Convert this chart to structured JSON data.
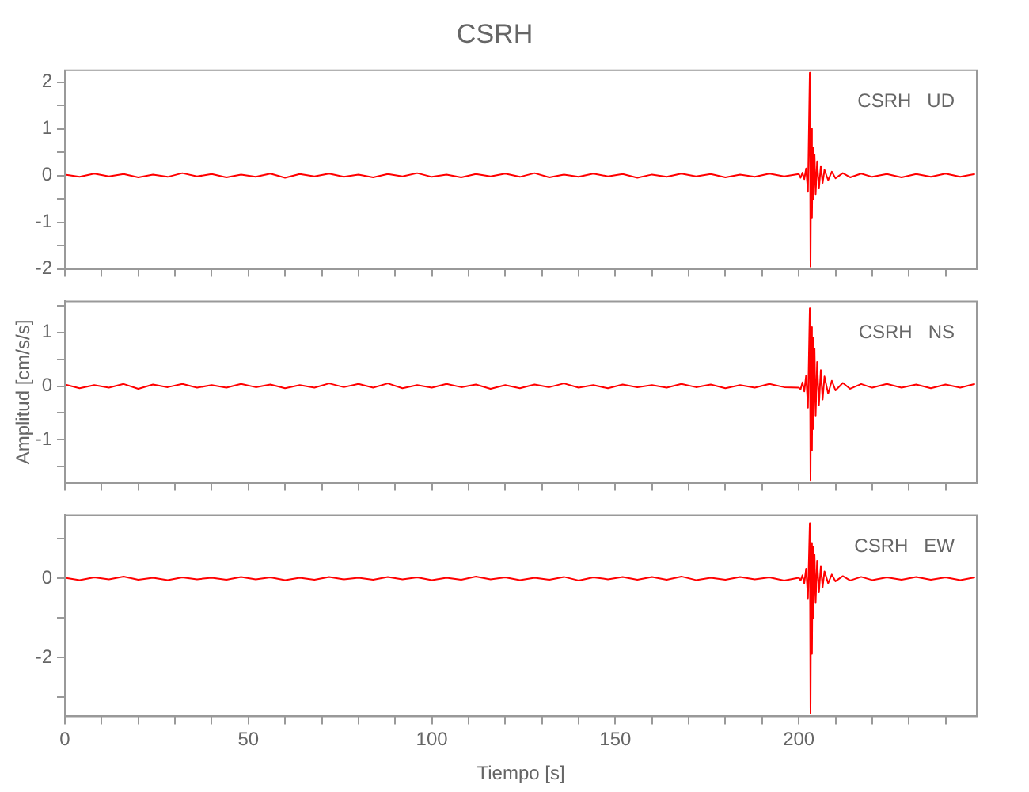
{
  "chart_data": [
    {
      "type": "line",
      "title": "CSRH",
      "annotations": [
        "CSRH   UD"
      ],
      "grid": false,
      "tick_labels": "y",
      "x": [
        0,
        4,
        8,
        12,
        16,
        20,
        24,
        28,
        32,
        36,
        40,
        44,
        48,
        52,
        56,
        60,
        64,
        68,
        72,
        76,
        80,
        84,
        88,
        92,
        96,
        100,
        104,
        108,
        112,
        116,
        120,
        124,
        128,
        132,
        136,
        140,
        144,
        148,
        152,
        156,
        160,
        164,
        168,
        172,
        176,
        180,
        184,
        188,
        192,
        196,
        200,
        200.5,
        201,
        201.5,
        202,
        202.5,
        203,
        203.2,
        203.4,
        203.6,
        203.8,
        204,
        204.3,
        204.6,
        205,
        205.5,
        206,
        206.5,
        207,
        208,
        209,
        210,
        212,
        214,
        217,
        220,
        224,
        228,
        232,
        236,
        240,
        244,
        248
      ],
      "series": [
        {
          "color": "#ff0000",
          "values": [
            0.02,
            -0.03,
            0.04,
            -0.02,
            0.03,
            -0.04,
            0.02,
            -0.03,
            0.05,
            -0.02,
            0.03,
            -0.04,
            0.02,
            -0.03,
            0.04,
            -0.05,
            0.03,
            -0.02,
            0.04,
            -0.03,
            0.02,
            -0.04,
            0.03,
            -0.02,
            0.05,
            -0.03,
            0.02,
            -0.04,
            0.03,
            -0.02,
            0.04,
            -0.03,
            0.05,
            -0.04,
            0.02,
            -0.03,
            0.04,
            -0.02,
            0.03,
            -0.05,
            0.02,
            -0.03,
            0.04,
            -0.02,
            0.03,
            -0.04,
            0.02,
            -0.03,
            0.04,
            -0.02,
            0.03,
            -0.05,
            0.06,
            -0.08,
            0.15,
            -0.35,
            2.2,
            -1.95,
            1.0,
            -0.9,
            0.6,
            -0.5,
            0.45,
            -0.4,
            0.3,
            -0.28,
            0.2,
            -0.16,
            0.12,
            -0.1,
            0.08,
            -0.06,
            0.05,
            -0.04,
            0.04,
            -0.03,
            0.03,
            -0.04,
            0.03,
            -0.03,
            0.04,
            -0.03,
            0.03
          ]
        }
      ],
      "xlim": [
        0,
        248.5
      ],
      "ylim": [
        -2,
        2.25
      ],
      "xticks": [
        0,
        {
          "value": 10,
          "label": null
        },
        {
          "value": 20,
          "label": null
        },
        {
          "value": 30,
          "label": null
        },
        {
          "value": 40,
          "label": null
        },
        50,
        {
          "value": 60,
          "label": null
        },
        {
          "value": 70,
          "label": null
        },
        {
          "value": 80,
          "label": null
        },
        {
          "value": 90,
          "label": null
        },
        100,
        {
          "value": 110,
          "label": null
        },
        {
          "value": 120,
          "label": null
        },
        {
          "value": 130,
          "label": null
        },
        {
          "value": 140,
          "label": null
        },
        150,
        {
          "value": 160,
          "label": null
        },
        {
          "value": 170,
          "label": null
        },
        {
          "value": 180,
          "label": null
        },
        {
          "value": 190,
          "label": null
        },
        200,
        {
          "value": 210,
          "label": null
        },
        {
          "value": 220,
          "label": null
        },
        {
          "value": 230,
          "label": null
        },
        {
          "value": 240,
          "label": null
        }
      ],
      "yticks": [
        -2,
        {
          "value": -1.5,
          "label": null
        },
        -1,
        {
          "value": -0.5,
          "label": null
        },
        0,
        {
          "value": 0.5,
          "label": null
        },
        1,
        {
          "value": 1.5,
          "label": null
        },
        2
      ]
    },
    {
      "type": "line",
      "ylabel": "Amplitud [cm/s/s]",
      "annotations": [
        "CSRH   NS"
      ],
      "grid": false,
      "tick_labels": "y",
      "x": [
        0,
        4,
        8,
        12,
        16,
        20,
        24,
        28,
        32,
        36,
        40,
        44,
        48,
        52,
        56,
        60,
        64,
        68,
        72,
        76,
        80,
        84,
        88,
        92,
        96,
        100,
        104,
        108,
        112,
        116,
        120,
        124,
        128,
        132,
        136,
        140,
        144,
        148,
        152,
        156,
        160,
        164,
        168,
        172,
        176,
        180,
        184,
        188,
        192,
        196,
        200,
        200.5,
        201,
        201.5,
        202,
        202.5,
        203,
        203.2,
        203.4,
        203.6,
        203.8,
        204,
        204.3,
        204.6,
        205,
        205.5,
        206,
        206.5,
        207,
        208,
        209,
        210,
        212,
        214,
        217,
        220,
        224,
        228,
        232,
        236,
        240,
        244,
        248
      ],
      "series": [
        {
          "color": "#ff0000",
          "values": [
            0.03,
            -0.04,
            0.02,
            -0.03,
            0.04,
            -0.05,
            0.03,
            -0.02,
            0.04,
            -0.03,
            0.02,
            -0.03,
            0.04,
            -0.02,
            0.03,
            -0.04,
            0.02,
            -0.03,
            0.05,
            -0.02,
            0.04,
            -0.03,
            0.05,
            -0.04,
            0.02,
            -0.03,
            0.04,
            -0.02,
            0.03,
            -0.05,
            0.02,
            -0.04,
            0.03,
            -0.02,
            0.05,
            -0.03,
            0.02,
            -0.04,
            0.03,
            -0.02,
            0.02,
            -0.03,
            0.04,
            -0.02,
            0.03,
            -0.04,
            0.02,
            -0.03,
            0.04,
            -0.02,
            -0.03,
            -0.06,
            0.07,
            -0.1,
            0.2,
            -0.4,
            1.45,
            -1.75,
            1.1,
            -1.2,
            0.9,
            -0.8,
            0.7,
            -0.55,
            0.45,
            -0.35,
            0.3,
            -0.25,
            0.18,
            -0.14,
            0.1,
            -0.08,
            0.06,
            -0.05,
            0.04,
            -0.03,
            0.04,
            -0.03,
            0.03,
            -0.04,
            0.03,
            -0.03,
            0.04
          ]
        }
      ],
      "xlim": [
        0,
        248.5
      ],
      "ylim": [
        -1.8,
        1.58
      ],
      "xticks": [
        0,
        {
          "value": 10,
          "label": null
        },
        {
          "value": 20,
          "label": null
        },
        {
          "value": 30,
          "label": null
        },
        {
          "value": 40,
          "label": null
        },
        50,
        {
          "value": 60,
          "label": null
        },
        {
          "value": 70,
          "label": null
        },
        {
          "value": 80,
          "label": null
        },
        {
          "value": 90,
          "label": null
        },
        100,
        {
          "value": 110,
          "label": null
        },
        {
          "value": 120,
          "label": null
        },
        {
          "value": 130,
          "label": null
        },
        {
          "value": 140,
          "label": null
        },
        150,
        {
          "value": 160,
          "label": null
        },
        {
          "value": 170,
          "label": null
        },
        {
          "value": 180,
          "label": null
        },
        {
          "value": 190,
          "label": null
        },
        200,
        {
          "value": 210,
          "label": null
        },
        {
          "value": 220,
          "label": null
        },
        {
          "value": 230,
          "label": null
        },
        {
          "value": 240,
          "label": null
        }
      ],
      "yticks": [
        {
          "value": -1.5,
          "label": null
        },
        -1,
        {
          "value": -0.5,
          "label": null
        },
        0,
        {
          "value": 0.5,
          "label": null
        },
        1,
        {
          "value": 1.5,
          "label": null
        }
      ]
    },
    {
      "type": "line",
      "xlabel": "Tiempo [s]",
      "annotations": [
        "CSRH   EW"
      ],
      "grid": false,
      "x": [
        0,
        4,
        8,
        12,
        16,
        20,
        24,
        28,
        32,
        36,
        40,
        44,
        48,
        52,
        56,
        60,
        64,
        68,
        72,
        76,
        80,
        84,
        88,
        92,
        96,
        100,
        104,
        108,
        112,
        116,
        120,
        124,
        128,
        132,
        136,
        140,
        144,
        148,
        152,
        156,
        160,
        164,
        168,
        172,
        176,
        180,
        184,
        188,
        192,
        196,
        200,
        200.5,
        201,
        201.5,
        202,
        202.5,
        203,
        203.2,
        203.4,
        203.6,
        203.8,
        204,
        204.3,
        204.6,
        205,
        205.5,
        206,
        206.5,
        207,
        208,
        209,
        210,
        212,
        214,
        217,
        220,
        224,
        228,
        232,
        236,
        240,
        244,
        248
      ],
      "series": [
        {
          "color": "#ff0000",
          "values": [
            0.02,
            -0.04,
            0.03,
            -0.02,
            0.05,
            -0.03,
            0.02,
            -0.04,
            0.03,
            -0.02,
            0.02,
            -0.03,
            0.04,
            -0.02,
            0.03,
            -0.04,
            0.02,
            -0.03,
            0.04,
            -0.02,
            0.02,
            -0.03,
            0.04,
            -0.02,
            0.03,
            -0.04,
            0.02,
            -0.03,
            0.05,
            -0.02,
            0.03,
            -0.04,
            0.02,
            -0.03,
            0.04,
            -0.05,
            0.03,
            -0.02,
            0.04,
            -0.03,
            0.04,
            -0.03,
            0.05,
            -0.04,
            0.02,
            -0.03,
            0.04,
            -0.02,
            0.03,
            -0.05,
            0.02,
            -0.05,
            0.08,
            -0.12,
            0.25,
            -0.5,
            1.4,
            -3.4,
            0.9,
            -1.9,
            0.8,
            -1.0,
            0.6,
            -0.6,
            0.45,
            -0.35,
            0.3,
            -0.22,
            0.18,
            -0.12,
            0.1,
            -0.07,
            0.06,
            -0.05,
            0.04,
            -0.04,
            0.03,
            -0.03,
            0.04,
            -0.03,
            0.03,
            -0.04,
            0.03
          ]
        }
      ],
      "xlim": [
        0,
        248.5
      ],
      "ylim": [
        -3.48,
        1.6
      ],
      "xticks": [
        0,
        {
          "value": 10,
          "label": null
        },
        {
          "value": 20,
          "label": null
        },
        {
          "value": 30,
          "label": null
        },
        {
          "value": 40,
          "label": null
        },
        50,
        {
          "value": 60,
          "label": null
        },
        {
          "value": 70,
          "label": null
        },
        {
          "value": 80,
          "label": null
        },
        {
          "value": 90,
          "label": null
        },
        100,
        {
          "value": 110,
          "label": null
        },
        {
          "value": 120,
          "label": null
        },
        {
          "value": 130,
          "label": null
        },
        {
          "value": 140,
          "label": null
        },
        150,
        {
          "value": 160,
          "label": null
        },
        {
          "value": 170,
          "label": null
        },
        {
          "value": 180,
          "label": null
        },
        {
          "value": 190,
          "label": null
        },
        200,
        {
          "value": 210,
          "label": null
        },
        {
          "value": 220,
          "label": null
        },
        {
          "value": 230,
          "label": null
        },
        {
          "value": 240,
          "label": null
        }
      ],
      "yticks": [
        {
          "value": 1,
          "label": null
        },
        0,
        {
          "value": -1,
          "label": null
        },
        -2,
        {
          "value": -3,
          "label": null
        }
      ]
    }
  ]
}
